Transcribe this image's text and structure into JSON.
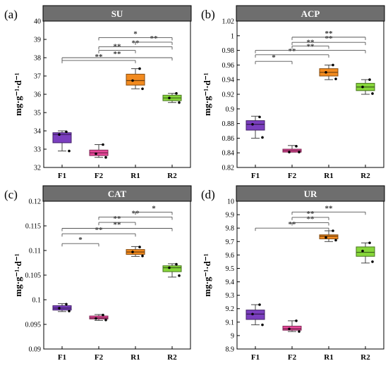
{
  "chart_data": [
    {
      "type": "box",
      "panel_label": "(a)",
      "title": "SU",
      "ylabel": "mg·g⁻¹·d⁻¹",
      "categories": [
        "F1",
        "F2",
        "R1",
        "R2"
      ],
      "ylim": [
        32,
        40
      ],
      "yticks": [
        "32",
        "33",
        "34",
        "35",
        "36",
        "37",
        "38",
        "39",
        "40"
      ],
      "colors": [
        "#7b3fbf",
        "#e8489a",
        "#f28a1e",
        "#86d63a"
      ],
      "boxes": [
        {
          "min": 32.9,
          "q1": 33.35,
          "median": 33.8,
          "q3": 33.9,
          "max": 34.0,
          "points": [
            33.95,
            33.8,
            32.9
          ]
        },
        {
          "min": 32.55,
          "q1": 32.65,
          "median": 32.8,
          "q3": 32.95,
          "max": 33.25,
          "points": [
            33.25,
            32.75,
            32.55
          ]
        },
        {
          "min": 36.3,
          "q1": 36.5,
          "median": 36.75,
          "q3": 37.1,
          "max": 37.4,
          "points": [
            37.4,
            36.75,
            36.3
          ]
        },
        {
          "min": 35.55,
          "q1": 35.65,
          "median": 35.8,
          "q3": 35.95,
          "max": 36.05,
          "points": [
            36.05,
            35.8,
            35.55
          ]
        }
      ],
      "comparisons": [
        {
          "from": 0,
          "to": 2,
          "label": "**",
          "y": 37.85
        },
        {
          "from": 0,
          "to": 3,
          "label": "**",
          "y": 38.0
        },
        {
          "from": 1,
          "to": 2,
          "label": "**",
          "y": 38.4
        },
        {
          "from": 1,
          "to": 3,
          "label": "**",
          "y": 38.6
        },
        {
          "from": 2,
          "to": 3,
          "label": "**",
          "y": 38.85
        },
        {
          "from": 1,
          "to": 3,
          "label": "*",
          "y": 39.1
        }
      ]
    },
    {
      "type": "box",
      "panel_label": "(b)",
      "title": "ACP",
      "ylabel": "mg·g⁻¹·d⁻¹",
      "categories": [
        "F1",
        "F2",
        "R1",
        "R2"
      ],
      "ylim": [
        0.82,
        1.02
      ],
      "yticks": [
        "0.82",
        "0.84",
        "0.86",
        "0.88",
        "0.9",
        "0.92",
        "0.94",
        "0.96",
        "0.98",
        "1",
        "1.02"
      ],
      "colors": [
        "#7b3fbf",
        "#e8489a",
        "#f28a1e",
        "#86d63a"
      ],
      "boxes": [
        {
          "min": 0.86,
          "q1": 0.871,
          "median": 0.879,
          "q3": 0.884,
          "max": 0.89,
          "points": [
            0.889,
            0.879,
            0.861
          ]
        },
        {
          "min": 0.841,
          "q1": 0.841,
          "median": 0.843,
          "q3": 0.845,
          "max": 0.85,
          "points": [
            0.849,
            0.841,
            0.841
          ]
        },
        {
          "min": 0.94,
          "q1": 0.945,
          "median": 0.95,
          "q3": 0.955,
          "max": 0.96,
          "points": [
            0.96,
            0.95,
            0.941
          ]
        },
        {
          "min": 0.92,
          "q1": 0.925,
          "median": 0.93,
          "q3": 0.935,
          "max": 0.94,
          "points": [
            0.94,
            0.93,
            0.921
          ]
        }
      ],
      "comparisons": [
        {
          "from": 0,
          "to": 1,
          "label": "*",
          "y": 0.965
        },
        {
          "from": 0,
          "to": 2,
          "label": "**",
          "y": 0.974
        },
        {
          "from": 0,
          "to": 3,
          "label": "**",
          "y": 0.98
        },
        {
          "from": 1,
          "to": 2,
          "label": "**",
          "y": 0.986
        },
        {
          "from": 1,
          "to": 3,
          "label": "**",
          "y": 0.991
        },
        {
          "from": 1,
          "to": 3,
          "label": "**",
          "y": 0.998
        }
      ]
    },
    {
      "type": "box",
      "panel_label": "(c)",
      "title": "CAT",
      "ylabel": "mg·g⁻¹·d⁻¹",
      "categories": [
        "F1",
        "F2",
        "R1",
        "R2"
      ],
      "ylim": [
        0.09,
        0.12
      ],
      "yticks": [
        "0.09",
        "0.095",
        "0.1",
        "0.105",
        "0.11",
        "0.115",
        "0.12"
      ],
      "colors": [
        "#7b3fbf",
        "#e8489a",
        "#f28a1e",
        "#86d63a"
      ],
      "boxes": [
        {
          "min": 0.0976,
          "q1": 0.0979,
          "median": 0.0983,
          "q3": 0.0988,
          "max": 0.0992,
          "points": [
            0.0991,
            0.0983,
            0.0977
          ]
        },
        {
          "min": 0.0958,
          "q1": 0.0961,
          "median": 0.0963,
          "q3": 0.0967,
          "max": 0.097,
          "points": [
            0.0969,
            0.0962,
            0.0959
          ]
        },
        {
          "min": 0.1088,
          "q1": 0.1092,
          "median": 0.1097,
          "q3": 0.1102,
          "max": 0.1108,
          "points": [
            0.1107,
            0.1097,
            0.1089
          ]
        },
        {
          "min": 0.1046,
          "q1": 0.1057,
          "median": 0.1065,
          "q3": 0.1069,
          "max": 0.1073,
          "points": [
            0.1072,
            0.1065,
            0.1049
          ]
        }
      ],
      "comparisons": [
        {
          "from": 0,
          "to": 1,
          "label": "*",
          "y": 0.1114
        },
        {
          "from": 0,
          "to": 2,
          "label": "**",
          "y": 0.1134
        },
        {
          "from": 0,
          "to": 3,
          "label": "**",
          "y": 0.1145
        },
        {
          "from": 1,
          "to": 2,
          "label": "**",
          "y": 0.1157
        },
        {
          "from": 1,
          "to": 3,
          "label": "**",
          "y": 0.1168
        },
        {
          "from": 2,
          "to": 3,
          "label": "*",
          "y": 0.1178
        }
      ]
    },
    {
      "type": "box",
      "panel_label": "(d)",
      "title": "UR",
      "ylabel": "mg·g⁻¹·d⁻¹",
      "categories": [
        "F1",
        "F2",
        "R1",
        "R2"
      ],
      "ylim": [
        8.9,
        10
      ],
      "yticks": [
        "8.9",
        "9",
        "9.1",
        "9.2",
        "9.3",
        "9.4",
        "9.5",
        "9.6",
        "9.7",
        "9.8",
        "9.9",
        "10"
      ],
      "colors": [
        "#7b3fbf",
        "#e8489a",
        "#f28a1e",
        "#86d63a"
      ],
      "boxes": [
        {
          "min": 9.08,
          "q1": 9.12,
          "median": 9.16,
          "q3": 9.19,
          "max": 9.23,
          "points": [
            9.23,
            9.16,
            9.08
          ]
        },
        {
          "min": 9.03,
          "q1": 9.04,
          "median": 9.05,
          "q3": 9.07,
          "max": 9.11,
          "points": [
            9.11,
            9.05,
            9.03
          ]
        },
        {
          "min": 9.7,
          "q1": 9.72,
          "median": 9.74,
          "q3": 9.75,
          "max": 9.78,
          "points": [
            9.78,
            9.73,
            9.71
          ]
        },
        {
          "min": 9.54,
          "q1": 9.59,
          "median": 9.62,
          "q3": 9.66,
          "max": 9.69,
          "points": [
            9.69,
            9.63,
            9.55
          ]
        }
      ],
      "comparisons": [
        {
          "from": 0,
          "to": 2,
          "label": "**",
          "y": 9.8
        },
        {
          "from": 1,
          "to": 2,
          "label": "**",
          "y": 9.84
        },
        {
          "from": 1,
          "to": 2,
          "label": "**",
          "y": 9.88
        },
        {
          "from": 1,
          "to": 3,
          "label": "**",
          "y": 9.92
        }
      ]
    }
  ]
}
